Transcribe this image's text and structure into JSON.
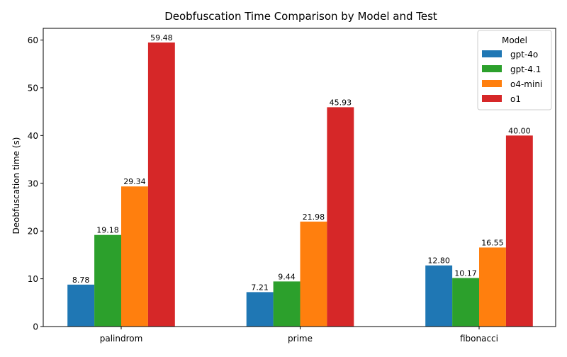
{
  "chart_data": {
    "type": "bar",
    "title": "Deobfuscation Time Comparison by Model and Test",
    "xlabel": "",
    "ylabel": "Deobfuscation time (s)",
    "categories": [
      "palindrom",
      "prime",
      "fibonacci"
    ],
    "series": [
      {
        "name": "gpt-4o",
        "color": "#1f77b4",
        "values": [
          8.78,
          7.21,
          12.8
        ],
        "labels": [
          "8.78",
          "7.21",
          "12.80"
        ]
      },
      {
        "name": "gpt-4.1",
        "color": "#2ca02c",
        "values": [
          19.18,
          9.44,
          10.17
        ],
        "labels": [
          "19.18",
          "9.44",
          "10.17"
        ]
      },
      {
        "name": "o4-mini",
        "color": "#ff7f0e",
        "values": [
          29.34,
          21.98,
          16.55
        ],
        "labels": [
          "29.34",
          "21.98",
          "16.55"
        ]
      },
      {
        "name": "o1",
        "color": "#d62728",
        "values": [
          59.48,
          45.93,
          40.0
        ],
        "labels": [
          "59.48",
          "45.93",
          "40.00"
        ]
      }
    ],
    "ylim": [
      0,
      62.45
    ],
    "yticks": [
      0,
      10,
      20,
      30,
      40,
      50,
      60
    ],
    "grid": false,
    "legend": {
      "title": "Model",
      "position": "top-right"
    }
  }
}
